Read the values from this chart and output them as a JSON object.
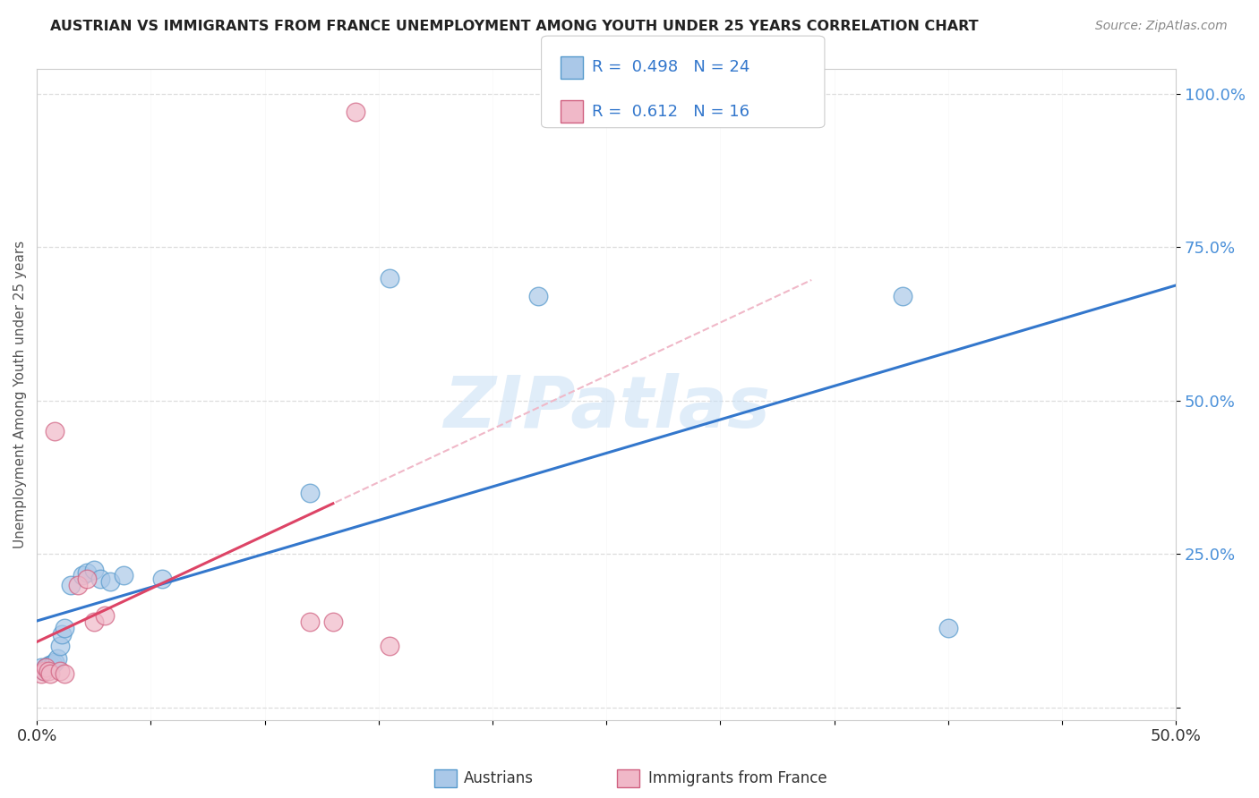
{
  "title": "AUSTRIAN VS IMMIGRANTS FROM FRANCE UNEMPLOYMENT AMONG YOUTH UNDER 25 YEARS CORRELATION CHART",
  "source": "Source: ZipAtlas.com",
  "ylabel": "Unemployment Among Youth under 25 years",
  "legend_austrians": "Austrians",
  "legend_immigrants": "Immigrants from France",
  "R_austrians": 0.498,
  "N_austrians": 24,
  "R_immigrants": 0.612,
  "N_immigrants": 16,
  "xlim": [
    0.0,
    0.5
  ],
  "ylim": [
    -0.02,
    1.04
  ],
  "austrians_x": [
    0.002,
    0.003,
    0.004,
    0.005,
    0.006,
    0.007,
    0.008,
    0.009,
    0.01,
    0.011,
    0.012,
    0.015,
    0.02,
    0.022,
    0.025,
    0.028,
    0.032,
    0.038,
    0.055,
    0.12,
    0.155,
    0.22,
    0.38,
    0.4
  ],
  "austrians_y": [
    0.065,
    0.06,
    0.065,
    0.068,
    0.07,
    0.072,
    0.075,
    0.08,
    0.1,
    0.12,
    0.13,
    0.2,
    0.215,
    0.22,
    0.225,
    0.21,
    0.205,
    0.215,
    0.21,
    0.35,
    0.7,
    0.67,
    0.67,
    0.13
  ],
  "immigrants_x": [
    0.002,
    0.003,
    0.004,
    0.005,
    0.006,
    0.008,
    0.01,
    0.012,
    0.018,
    0.022,
    0.025,
    0.03,
    0.12,
    0.13,
    0.14,
    0.155
  ],
  "immigrants_y": [
    0.055,
    0.06,
    0.065,
    0.06,
    0.055,
    0.45,
    0.06,
    0.055,
    0.2,
    0.21,
    0.14,
    0.15,
    0.14,
    0.14,
    0.97,
    0.1
  ],
  "color_austrians_face": "#aac8e8",
  "color_austrians_edge": "#5599cc",
  "color_immigrants_face": "#f0b8c8",
  "color_immigrants_edge": "#d06080",
  "color_line_austrians": "#3377cc",
  "color_line_immigrants": "#dd4466",
  "color_line_dashed": "#f0b8c8",
  "watermark_text": "ZIPatlas",
  "watermark_color": "#c8dff5",
  "background_color": "#ffffff",
  "grid_color": "#dddddd",
  "ytick_color": "#4a90d9",
  "title_color": "#222222",
  "source_color": "#888888"
}
